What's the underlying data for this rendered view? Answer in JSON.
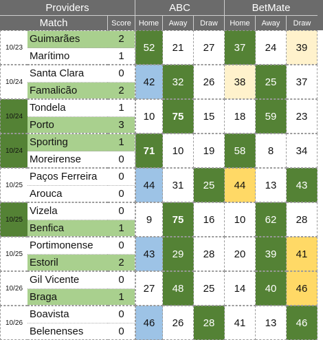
{
  "header": {
    "providers": "Providers",
    "abc": "ABC",
    "betmate": "BetMate",
    "match": "Match",
    "score": "Score",
    "home": "Home",
    "away": "Away",
    "draw": "Draw"
  },
  "colors": {
    "header_bg": "#6b6b6b",
    "winner_bg": "#a9d08e",
    "best_bg": "#548235",
    "blue_bg": "#9dc3e6",
    "yellow_bg": "#ffd966",
    "light_yellow_bg": "#fff2cc"
  },
  "matches": [
    {
      "date": "10/23",
      "date_green": false,
      "home": "Guimarães",
      "away": "Marítimo",
      "home_score": "2",
      "away_score": "1",
      "home_win": true,
      "away_win": false,
      "abc": [
        {
          "v": "52",
          "c": "g"
        },
        {
          "v": "21",
          "c": ""
        },
        {
          "v": "27",
          "c": ""
        }
      ],
      "bm": [
        {
          "v": "37",
          "c": "g"
        },
        {
          "v": "24",
          "c": ""
        },
        {
          "v": "39",
          "c": "ly"
        }
      ]
    },
    {
      "date": "10/24",
      "date_green": false,
      "home": "Santa Clara",
      "away": "Famalicão",
      "home_score": "0",
      "away_score": "2",
      "home_win": false,
      "away_win": true,
      "abc": [
        {
          "v": "42",
          "c": "b"
        },
        {
          "v": "32",
          "c": "g"
        },
        {
          "v": "26",
          "c": ""
        }
      ],
      "bm": [
        {
          "v": "38",
          "c": "ly"
        },
        {
          "v": "25",
          "c": "g"
        },
        {
          "v": "37",
          "c": ""
        }
      ]
    },
    {
      "date": "10/24",
      "date_green": true,
      "home": "Tondela",
      "away": "Porto",
      "home_score": "1",
      "away_score": "3",
      "home_win": false,
      "away_win": true,
      "abc": [
        {
          "v": "10",
          "c": ""
        },
        {
          "v": "75",
          "c": "g bold"
        },
        {
          "v": "15",
          "c": ""
        }
      ],
      "bm": [
        {
          "v": "18",
          "c": ""
        },
        {
          "v": "59",
          "c": "g"
        },
        {
          "v": "23",
          "c": ""
        }
      ]
    },
    {
      "date": "10/24",
      "date_green": true,
      "home": "Sporting",
      "away": "Moreirense",
      "home_score": "1",
      "away_score": "0",
      "home_win": true,
      "away_win": false,
      "abc": [
        {
          "v": "71",
          "c": "g bold"
        },
        {
          "v": "10",
          "c": ""
        },
        {
          "v": "19",
          "c": ""
        }
      ],
      "bm": [
        {
          "v": "58",
          "c": "g"
        },
        {
          "v": "8",
          "c": ""
        },
        {
          "v": "34",
          "c": ""
        }
      ]
    },
    {
      "date": "10/25",
      "date_green": false,
      "home": "Paços Ferreira",
      "away": "Arouca",
      "home_score": "0",
      "away_score": "0",
      "home_win": false,
      "away_win": false,
      "abc": [
        {
          "v": "44",
          "c": "b"
        },
        {
          "v": "31",
          "c": ""
        },
        {
          "v": "25",
          "c": "g"
        }
      ],
      "bm": [
        {
          "v": "44",
          "c": "y"
        },
        {
          "v": "13",
          "c": ""
        },
        {
          "v": "43",
          "c": "g"
        }
      ]
    },
    {
      "date": "10/25",
      "date_green": true,
      "home": "Vizela",
      "away": "Benfica",
      "home_score": "0",
      "away_score": "1",
      "home_win": false,
      "away_win": true,
      "abc": [
        {
          "v": "9",
          "c": ""
        },
        {
          "v": "75",
          "c": "g bold"
        },
        {
          "v": "16",
          "c": ""
        }
      ],
      "bm": [
        {
          "v": "10",
          "c": ""
        },
        {
          "v": "62",
          "c": "g"
        },
        {
          "v": "28",
          "c": ""
        }
      ]
    },
    {
      "date": "10/25",
      "date_green": false,
      "home": "Portimonense",
      "away": "Estoril",
      "home_score": "0",
      "away_score": "2",
      "home_win": false,
      "away_win": true,
      "abc": [
        {
          "v": "43",
          "c": "b"
        },
        {
          "v": "29",
          "c": "g"
        },
        {
          "v": "28",
          "c": ""
        }
      ],
      "bm": [
        {
          "v": "20",
          "c": ""
        },
        {
          "v": "39",
          "c": "g"
        },
        {
          "v": "41",
          "c": "y"
        }
      ]
    },
    {
      "date": "10/26",
      "date_green": false,
      "home": "Gil Vicente",
      "away": "Braga",
      "home_score": "0",
      "away_score": "1",
      "home_win": false,
      "away_win": true,
      "abc": [
        {
          "v": "27",
          "c": ""
        },
        {
          "v": "48",
          "c": "g"
        },
        {
          "v": "25",
          "c": ""
        }
      ],
      "bm": [
        {
          "v": "14",
          "c": ""
        },
        {
          "v": "40",
          "c": "g"
        },
        {
          "v": "46",
          "c": "y"
        }
      ]
    },
    {
      "date": "10/26",
      "date_green": false,
      "home": "Boavista",
      "away": "Belenenses",
      "home_score": "0",
      "away_score": "0",
      "home_win": false,
      "away_win": false,
      "abc": [
        {
          "v": "46",
          "c": "b"
        },
        {
          "v": "26",
          "c": ""
        },
        {
          "v": "28",
          "c": "g"
        }
      ],
      "bm": [
        {
          "v": "41",
          "c": ""
        },
        {
          "v": "13",
          "c": ""
        },
        {
          "v": "46",
          "c": "g"
        }
      ]
    }
  ]
}
